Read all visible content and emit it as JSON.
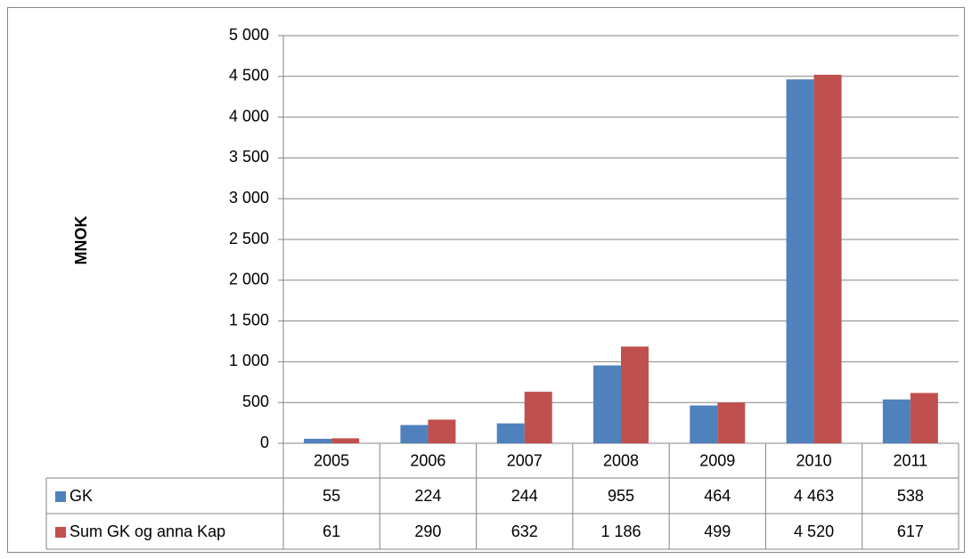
{
  "chart_data": {
    "type": "bar",
    "y_label": "MNOK",
    "categories": [
      "2005",
      "2006",
      "2007",
      "2008",
      "2009",
      "2010",
      "2011"
    ],
    "series": [
      {
        "name": "GK",
        "color": "#4f81bd",
        "values": [
          55,
          224,
          244,
          955,
          464,
          4463,
          538
        ],
        "value_labels": [
          "55",
          "224",
          "244",
          "955",
          "464",
          "4 463",
          "538"
        ]
      },
      {
        "name": "Sum GK og anna Kap",
        "color": "#c0504d",
        "values": [
          61,
          290,
          632,
          1186,
          499,
          4520,
          617
        ],
        "value_labels": [
          "61",
          "290",
          "632",
          "1 186",
          "499",
          "4 520",
          "617"
        ]
      }
    ],
    "ylim": [
      0,
      5000
    ],
    "yticks": [
      0,
      500,
      {
        "value": 1000,
        "label": "1 000"
      },
      {
        "value": 1500,
        "label": "1 500"
      },
      {
        "value": 2000,
        "label": "2 000"
      },
      {
        "value": 2500,
        "label": "2 500"
      },
      {
        "value": 3000,
        "label": "3 000"
      },
      {
        "value": 3500,
        "label": "3 500"
      },
      {
        "value": 4000,
        "label": "4 000"
      },
      {
        "value": 4500,
        "label": "4 500"
      },
      {
        "value": 5000,
        "label": "5 000"
      }
    ],
    "grid": true
  }
}
